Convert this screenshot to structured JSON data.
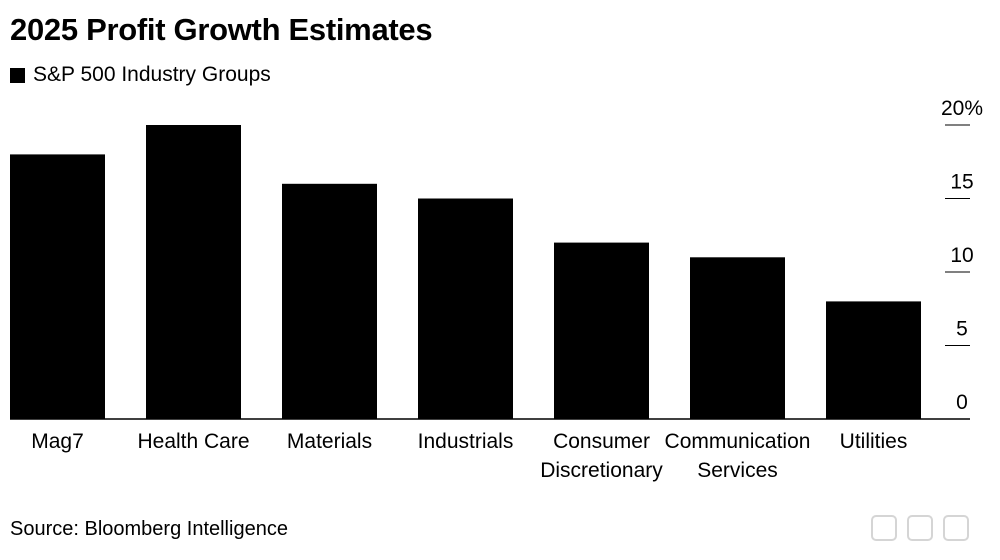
{
  "chart_data": {
    "type": "bar",
    "title": "2025 Profit Growth Estimates",
    "legend": [
      {
        "label": "S&P 500 Industry Groups",
        "color": "#000000"
      }
    ],
    "categories": [
      "Mag7",
      "Health Care",
      "Materials",
      "Industrials",
      "Consumer Discretionary",
      "Communication Services",
      "Utilities"
    ],
    "category_lines": [
      [
        "Mag7"
      ],
      [
        "Health Care"
      ],
      [
        "Materials"
      ],
      [
        "Industrials"
      ],
      [
        "Consumer",
        "Discretionary"
      ],
      [
        "Communication",
        "Services"
      ],
      [
        "Utilities"
      ]
    ],
    "values": [
      18,
      20,
      16,
      15,
      12,
      11,
      8
    ],
    "ylim": [
      0,
      20
    ],
    "yticks": [
      0,
      5,
      10,
      15,
      20
    ],
    "ytick_labels": [
      "0",
      "5",
      "10",
      "15",
      "20%"
    ],
    "y_axis_position": "right",
    "bar_color": "#000000",
    "xlabel": "",
    "ylabel": ""
  },
  "source": "Source: Bloomberg Intelligence"
}
